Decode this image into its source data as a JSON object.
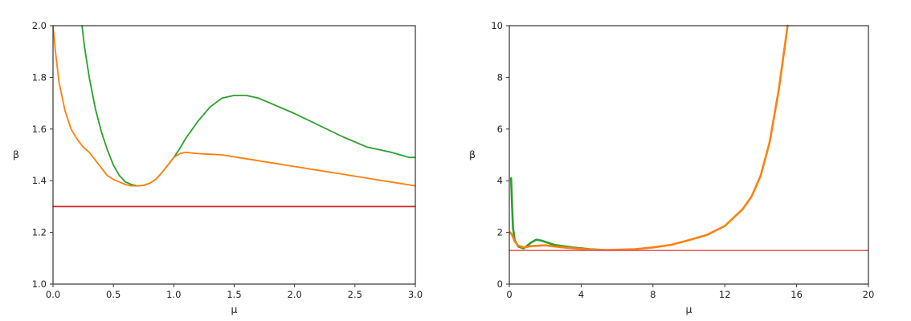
{
  "chart_data": [
    {
      "type": "line",
      "xlabel": "μ",
      "ylabel": "β",
      "xlim": [
        0.0,
        3.0
      ],
      "ylim": [
        1.0,
        2.0
      ],
      "x_ticks": [
        0.0,
        0.5,
        1.0,
        1.5,
        2.0,
        2.5,
        3.0
      ],
      "x_tick_labels": [
        "0.0",
        "0.5",
        "1.0",
        "1.5",
        "2.0",
        "2.5",
        "3.0"
      ],
      "y_ticks": [
        1.0,
        1.2,
        1.4,
        1.6,
        1.8,
        2.0
      ],
      "y_tick_labels": [
        "1.0",
        "1.2",
        "1.4",
        "1.6",
        "1.8",
        "2.0"
      ],
      "grid": false,
      "series": [
        {
          "color": "#2ca02c",
          "x": [
            0.24,
            0.26,
            0.3,
            0.35,
            0.4,
            0.45,
            0.5,
            0.55,
            0.6,
            0.65,
            0.7,
            0.75,
            0.8,
            0.85,
            0.9,
            0.95,
            1.0,
            1.05,
            1.1,
            1.2,
            1.3,
            1.4,
            1.5,
            1.6,
            1.7,
            1.8,
            2.0,
            2.2,
            2.4,
            2.6,
            2.8,
            2.95,
            3.0
          ],
          "y": [
            2.0,
            1.92,
            1.8,
            1.68,
            1.59,
            1.52,
            1.46,
            1.42,
            1.395,
            1.385,
            1.38,
            1.382,
            1.39,
            1.405,
            1.43,
            1.46,
            1.49,
            1.525,
            1.565,
            1.63,
            1.685,
            1.72,
            1.73,
            1.73,
            1.72,
            1.7,
            1.66,
            1.615,
            1.57,
            1.53,
            1.51,
            1.49,
            1.49
          ]
        },
        {
          "color": "#ff7f0e",
          "x": [
            0.0,
            0.02,
            0.05,
            0.1,
            0.15,
            0.2,
            0.25,
            0.3,
            0.35,
            0.4,
            0.45,
            0.5,
            0.55,
            0.6,
            0.65,
            0.7,
            0.75,
            0.8,
            0.85,
            0.9,
            0.95,
            1.0,
            1.05,
            1.1,
            1.2,
            1.4,
            1.6,
            1.8,
            2.0,
            2.2,
            2.4,
            2.6,
            2.8,
            3.0
          ],
          "y": [
            2.0,
            1.9,
            1.78,
            1.67,
            1.6,
            1.56,
            1.53,
            1.51,
            1.48,
            1.45,
            1.42,
            1.405,
            1.395,
            1.385,
            1.38,
            1.38,
            1.382,
            1.39,
            1.405,
            1.43,
            1.46,
            1.49,
            1.505,
            1.51,
            1.505,
            1.5,
            1.485,
            1.47,
            1.455,
            1.44,
            1.425,
            1.41,
            1.395,
            1.38
          ]
        },
        {
          "color": "#d62728",
          "x": [
            0.0,
            3.0
          ],
          "y": [
            1.3,
            1.3
          ]
        }
      ]
    },
    {
      "type": "line",
      "xlabel": "μ",
      "ylabel": "β",
      "xlim": [
        0,
        20
      ],
      "ylim": [
        0,
        10
      ],
      "x_ticks": [
        0,
        4,
        8,
        12,
        16,
        20
      ],
      "x_tick_labels": [
        "0",
        "4",
        "8",
        "12",
        "16",
        "20"
      ],
      "y_ticks": [
        0,
        2,
        4,
        6,
        8,
        10
      ],
      "y_tick_labels": [
        "0",
        "2",
        "4",
        "6",
        "8",
        "10"
      ],
      "grid": false,
      "series": [
        {
          "color": "#2ca02c",
          "x": [
            0.1,
            0.13,
            0.16,
            0.2,
            0.3,
            0.5,
            0.8,
            1.2,
            1.5,
            1.8,
            2.5,
            3.5,
            4.5,
            5.5
          ],
          "y": [
            4.1,
            3.5,
            2.9,
            2.2,
            1.7,
            1.45,
            1.38,
            1.6,
            1.72,
            1.68,
            1.52,
            1.42,
            1.35,
            1.31
          ]
        },
        {
          "color": "#ff7f0e",
          "x": [
            0.05,
            0.15,
            0.3,
            0.5,
            0.8,
            1.2,
            2.0,
            3.0,
            4.0,
            5.0,
            6.0,
            7.0,
            8.0,
            9.0,
            10.0,
            11.0,
            12.0,
            13.0,
            13.5,
            14.0,
            14.5,
            15.0,
            15.3,
            15.5
          ],
          "y": [
            2.0,
            1.9,
            1.65,
            1.48,
            1.42,
            1.47,
            1.5,
            1.42,
            1.36,
            1.32,
            1.33,
            1.35,
            1.42,
            1.52,
            1.7,
            1.9,
            2.25,
            2.9,
            3.4,
            4.2,
            5.5,
            7.5,
            9.0,
            10.0
          ]
        },
        {
          "color": "#e36a6a",
          "x": [
            0,
            20
          ],
          "y": [
            1.3,
            1.3
          ]
        }
      ]
    }
  ]
}
